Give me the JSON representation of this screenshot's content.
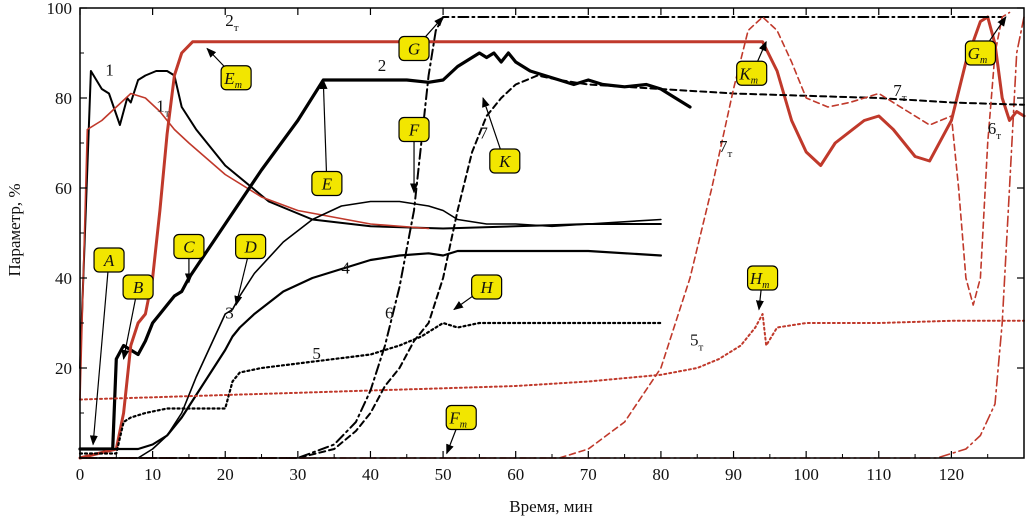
{
  "chart_data": {
    "type": "line",
    "title": "",
    "xlabel": "Время, мин",
    "ylabel": "Параметр, %",
    "xlim": [
      0,
      130
    ],
    "ylim": [
      0,
      100
    ],
    "xticks": [
      0,
      10,
      20,
      30,
      40,
      50,
      60,
      70,
      80,
      90,
      100,
      110,
      120
    ],
    "yticks": [
      20,
      40,
      60,
      80,
      100
    ],
    "grid": false,
    "series": [
      {
        "name": "1",
        "color": "#000000",
        "style": "solid",
        "width": 2,
        "x": [
          0,
          1.5,
          3,
          4,
          5.5,
          6.5,
          7,
          8,
          9,
          10.5,
          12,
          13,
          14,
          16,
          20,
          26,
          32,
          40,
          50,
          60,
          70,
          80
        ],
        "y": [
          20,
          86,
          82,
          81,
          74,
          80,
          79,
          84,
          85,
          86,
          86,
          85,
          78,
          73,
          65,
          57,
          53,
          51.5,
          51,
          51.5,
          52,
          52
        ]
      },
      {
        "name": "1т",
        "color": "#c0392b",
        "style": "solid",
        "width": 1.6,
        "x": [
          0,
          1,
          3,
          5,
          7,
          9,
          11,
          13,
          15,
          20,
          25,
          30,
          40,
          48
        ],
        "y": [
          13,
          73,
          75,
          78,
          81,
          80,
          77,
          73,
          70,
          63,
          58,
          55,
          52,
          51
        ]
      },
      {
        "name": "2",
        "color": "#000000",
        "style": "solid",
        "width": 3.2,
        "x": [
          0,
          4.5,
          5,
          6,
          7,
          8,
          9,
          10,
          11,
          12,
          13,
          14,
          15,
          20,
          25,
          30,
          33.5,
          40,
          45,
          48,
          50,
          52,
          54,
          55,
          56,
          57,
          58,
          59,
          60,
          62,
          64,
          66,
          68,
          70,
          72,
          75,
          78,
          80,
          82,
          84
        ],
        "y": [
          2,
          2,
          22,
          25,
          24,
          23,
          26,
          30,
          32,
          34,
          36,
          37,
          40,
          52,
          64,
          75,
          84,
          84,
          84,
          83.5,
          84,
          87,
          89,
          90,
          89,
          90,
          88,
          90,
          88,
          86,
          85,
          84,
          83,
          84,
          83,
          82.5,
          83,
          82,
          80,
          78
        ]
      },
      {
        "name": "2т",
        "color": "#c0392b",
        "style": "solid",
        "width": 3,
        "x": [
          0,
          5,
          6,
          7,
          8,
          9,
          10,
          11,
          12,
          13,
          14,
          15.5,
          20,
          40,
          60,
          80,
          94,
          96,
          98,
          100,
          102,
          104,
          108,
          110,
          112,
          115,
          117,
          120,
          122,
          124,
          125,
          126,
          127,
          128,
          129,
          130
        ],
        "y": [
          0,
          2,
          10,
          25,
          30,
          32,
          40,
          55,
          72,
          85,
          90,
          92.5,
          92.5,
          92.5,
          92.5,
          92.5,
          92.5,
          86,
          75,
          68,
          65,
          70,
          75,
          76,
          73,
          67,
          66,
          75,
          88,
          97,
          98,
          92,
          80,
          75,
          77,
          76
        ]
      },
      {
        "name": "3",
        "color": "#000000",
        "style": "solid",
        "width": 1.6,
        "x": [
          0,
          8,
          10,
          12,
          14,
          16,
          18,
          20,
          21,
          22,
          24,
          28,
          32,
          36,
          40,
          44,
          48,
          50,
          52,
          56,
          60,
          65,
          70,
          80
        ],
        "y": [
          0,
          0,
          2,
          5,
          10,
          18,
          25,
          32,
          33,
          36,
          41,
          48,
          53,
          56,
          57,
          57,
          56,
          55,
          53,
          52,
          52,
          51.5,
          52,
          53
        ]
      },
      {
        "name": "4",
        "color": "#000000",
        "style": "solid",
        "width": 2.2,
        "x": [
          0,
          8,
          10,
          12,
          14,
          16,
          18,
          20,
          21,
          22,
          24,
          28,
          32,
          36,
          40,
          44,
          48,
          50,
          52,
          56,
          60,
          65,
          70,
          80
        ],
        "y": [
          2,
          2,
          3,
          5,
          9,
          14,
          19,
          24,
          27,
          29,
          32,
          37,
          40,
          42,
          44,
          45,
          45.5,
          45,
          46,
          46,
          46,
          46,
          46,
          45
        ]
      },
      {
        "name": "5",
        "color": "#000000",
        "style": "dotted",
        "width": 2.2,
        "x": [
          0,
          5,
          6,
          7,
          9,
          12,
          20,
          21,
          22,
          25,
          30,
          35,
          40,
          44,
          47,
          50,
          52,
          55,
          60,
          65,
          70,
          80
        ],
        "y": [
          1,
          1,
          8,
          9,
          10,
          11,
          11,
          17,
          19,
          20,
          21,
          22,
          23,
          25,
          27,
          30,
          29,
          30,
          30,
          30,
          30,
          30
        ]
      },
      {
        "name": "5т",
        "color": "#c0392b",
        "style": "dotted",
        "width": 2,
        "x": [
          0,
          10,
          20,
          30,
          40,
          50,
          60,
          70,
          80,
          85,
          88,
          91,
          93,
          94,
          94.5,
          96,
          100,
          110,
          120,
          130
        ],
        "y": [
          13,
          13.5,
          14,
          14.5,
          15,
          15.5,
          16,
          17,
          18.5,
          20,
          22,
          25,
          29,
          32,
          25,
          29,
          30,
          30,
          30.5,
          30.5
        ]
      },
      {
        "name": "6",
        "color": "#000000",
        "style": "dashdot",
        "width": 2,
        "x": [
          0,
          30,
          35,
          38,
          40,
          42,
          44,
          46,
          47,
          48,
          49,
          50,
          51,
          60,
          80,
          100,
          120,
          127
        ],
        "y": [
          0,
          0,
          3,
          8,
          15,
          25,
          38,
          55,
          70,
          85,
          95,
          98,
          98,
          98,
          98,
          98,
          98,
          98
        ]
      },
      {
        "name": "6т",
        "color": "#c0392b",
        "style": "dashdot",
        "width": 1.6,
        "x": [
          0,
          110,
          118,
          122,
          124,
          126,
          127,
          128,
          129,
          130
        ],
        "y": [
          0,
          0,
          0,
          2,
          5,
          12,
          30,
          60,
          90,
          98
        ]
      },
      {
        "name": "7",
        "color": "#000000",
        "style": "dashed",
        "width": 2,
        "x": [
          0,
          20,
          30,
          35,
          38,
          40,
          42,
          44,
          46,
          48,
          50,
          52,
          54,
          56,
          58,
          60,
          63,
          66,
          70,
          80,
          90,
          100,
          110,
          120,
          130
        ],
        "y": [
          0,
          0,
          0,
          2,
          6,
          10,
          16,
          20,
          26,
          30,
          40,
          55,
          68,
          76,
          80,
          83,
          85,
          84,
          83,
          82,
          81,
          80.5,
          80,
          79,
          78.5
        ]
      },
      {
        "name": "7т",
        "color": "#c0392b",
        "style": "dashed",
        "width": 1.6,
        "x": [
          0,
          60,
          66,
          70,
          75,
          80,
          84,
          87,
          90,
          92,
          94,
          96,
          98,
          100,
          103,
          106,
          110,
          114,
          117,
          120,
          121,
          122,
          123,
          124,
          125,
          126,
          127,
          128
        ],
        "y": [
          0,
          0,
          0,
          2,
          8,
          20,
          40,
          60,
          82,
          95,
          98,
          95,
          88,
          80,
          78,
          79,
          81,
          77,
          74,
          76,
          60,
          40,
          34,
          40,
          70,
          90,
          98,
          99
        ]
      }
    ],
    "series_labels": [
      {
        "text": "1",
        "x": 3.5,
        "y": 85
      },
      {
        "text": "1т",
        "x": 10.5,
        "y": 77
      },
      {
        "text": "2",
        "x": 41,
        "y": 86
      },
      {
        "text": "2т",
        "x": 20,
        "y": 96
      },
      {
        "text": "3",
        "x": 20,
        "y": 31
      },
      {
        "text": "4",
        "x": 36,
        "y": 41
      },
      {
        "text": "5",
        "x": 32,
        "y": 22
      },
      {
        "text": "5т",
        "x": 84,
        "y": 25
      },
      {
        "text": "6",
        "x": 42,
        "y": 31
      },
      {
        "text": "6т",
        "x": 125,
        "y": 72
      },
      {
        "text": "7",
        "x": 55,
        "y": 71
      },
      {
        "text": "7т",
        "x": 88,
        "y": 68
      },
      {
        "text": "7т",
        "x": 112,
        "y": 80.5
      }
    ],
    "annotations": [
      {
        "text": "A",
        "sub": "",
        "x": 4,
        "y": 44,
        "ax": 1.8,
        "ay": 3
      },
      {
        "text": "B",
        "sub": "",
        "x": 8,
        "y": 38,
        "ax": 6,
        "ay": 22
      },
      {
        "text": "C",
        "sub": "",
        "x": 15,
        "y": 47,
        "ax": 15,
        "ay": 39
      },
      {
        "text": "D",
        "sub": "",
        "x": 23.5,
        "y": 47,
        "ax": 21.5,
        "ay": 34
      },
      {
        "text": "E",
        "sub": "",
        "x": 34,
        "y": 61,
        "ax": 33.5,
        "ay": 84
      },
      {
        "text": "Е",
        "sub": "т",
        "x": 21.5,
        "y": 84.5,
        "ax": 17.5,
        "ay": 91
      },
      {
        "text": "F",
        "sub": "",
        "x": 46,
        "y": 73,
        "ax": 46,
        "ay": 59
      },
      {
        "text": "F",
        "sub": "т",
        "x": 52.5,
        "y": 9,
        "ax": 50.5,
        "ay": 1
      },
      {
        "text": "G",
        "sub": "",
        "x": 46,
        "y": 91,
        "ax": 50,
        "ay": 98
      },
      {
        "text": "G",
        "sub": "т",
        "x": 124,
        "y": 90,
        "ax": 127.5,
        "ay": 98
      },
      {
        "text": "H",
        "sub": "",
        "x": 56,
        "y": 38,
        "ax": 51.5,
        "ay": 33
      },
      {
        "text": "Н",
        "sub": "т",
        "x": 94,
        "y": 40,
        "ax": 93.5,
        "ay": 33
      },
      {
        "text": "K",
        "sub": "",
        "x": 58.5,
        "y": 66,
        "ax": 55.5,
        "ay": 80
      },
      {
        "text": "K",
        "sub": "т",
        "x": 92.5,
        "y": 85.5,
        "ax": 94.5,
        "ay": 92.5
      }
    ]
  }
}
